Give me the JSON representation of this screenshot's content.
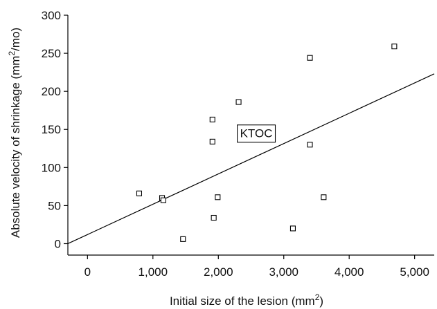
{
  "chart_data": {
    "type": "scatter",
    "xlabel": "Initial size of the lesion (mm²)",
    "ylabel": "Absolute velocity of shrinkage (mm²/mo)",
    "xlim": [
      -300,
      5300
    ],
    "ylim": [
      -15,
      300
    ],
    "xticks": [
      0,
      1000,
      2000,
      3000,
      4000,
      5000
    ],
    "xtick_labels": [
      "0",
      "1,000",
      "2,000",
      "3,000",
      "4,000",
      "5,000"
    ],
    "yticks": [
      0,
      50,
      100,
      150,
      200,
      250,
      300
    ],
    "ytick_labels": [
      "0",
      "50",
      "100",
      "150",
      "200",
      "250",
      "300"
    ],
    "grid": false,
    "series": [
      {
        "marker": "open-square",
        "points": [
          {
            "x": 790,
            "y": 66
          },
          {
            "x": 1140,
            "y": 60
          },
          {
            "x": 1160,
            "y": 57
          },
          {
            "x": 1460,
            "y": 6
          },
          {
            "x": 1910,
            "y": 163
          },
          {
            "x": 1910,
            "y": 134
          },
          {
            "x": 1930,
            "y": 34
          },
          {
            "x": 1990,
            "y": 61
          },
          {
            "x": 2310,
            "y": 186
          },
          {
            "x": 3140,
            "y": 20
          },
          {
            "x": 3400,
            "y": 244
          },
          {
            "x": 3400,
            "y": 130
          },
          {
            "x": 3610,
            "y": 61
          },
          {
            "x": 4690,
            "y": 259
          }
        ]
      }
    ],
    "trend_line": {
      "start": {
        "x": -300,
        "y": 0
      },
      "end": {
        "x": 5300,
        "y": 223
      }
    },
    "annotations": [
      {
        "text": "KTOC",
        "x": 2580,
        "y": 145
      }
    ]
  }
}
